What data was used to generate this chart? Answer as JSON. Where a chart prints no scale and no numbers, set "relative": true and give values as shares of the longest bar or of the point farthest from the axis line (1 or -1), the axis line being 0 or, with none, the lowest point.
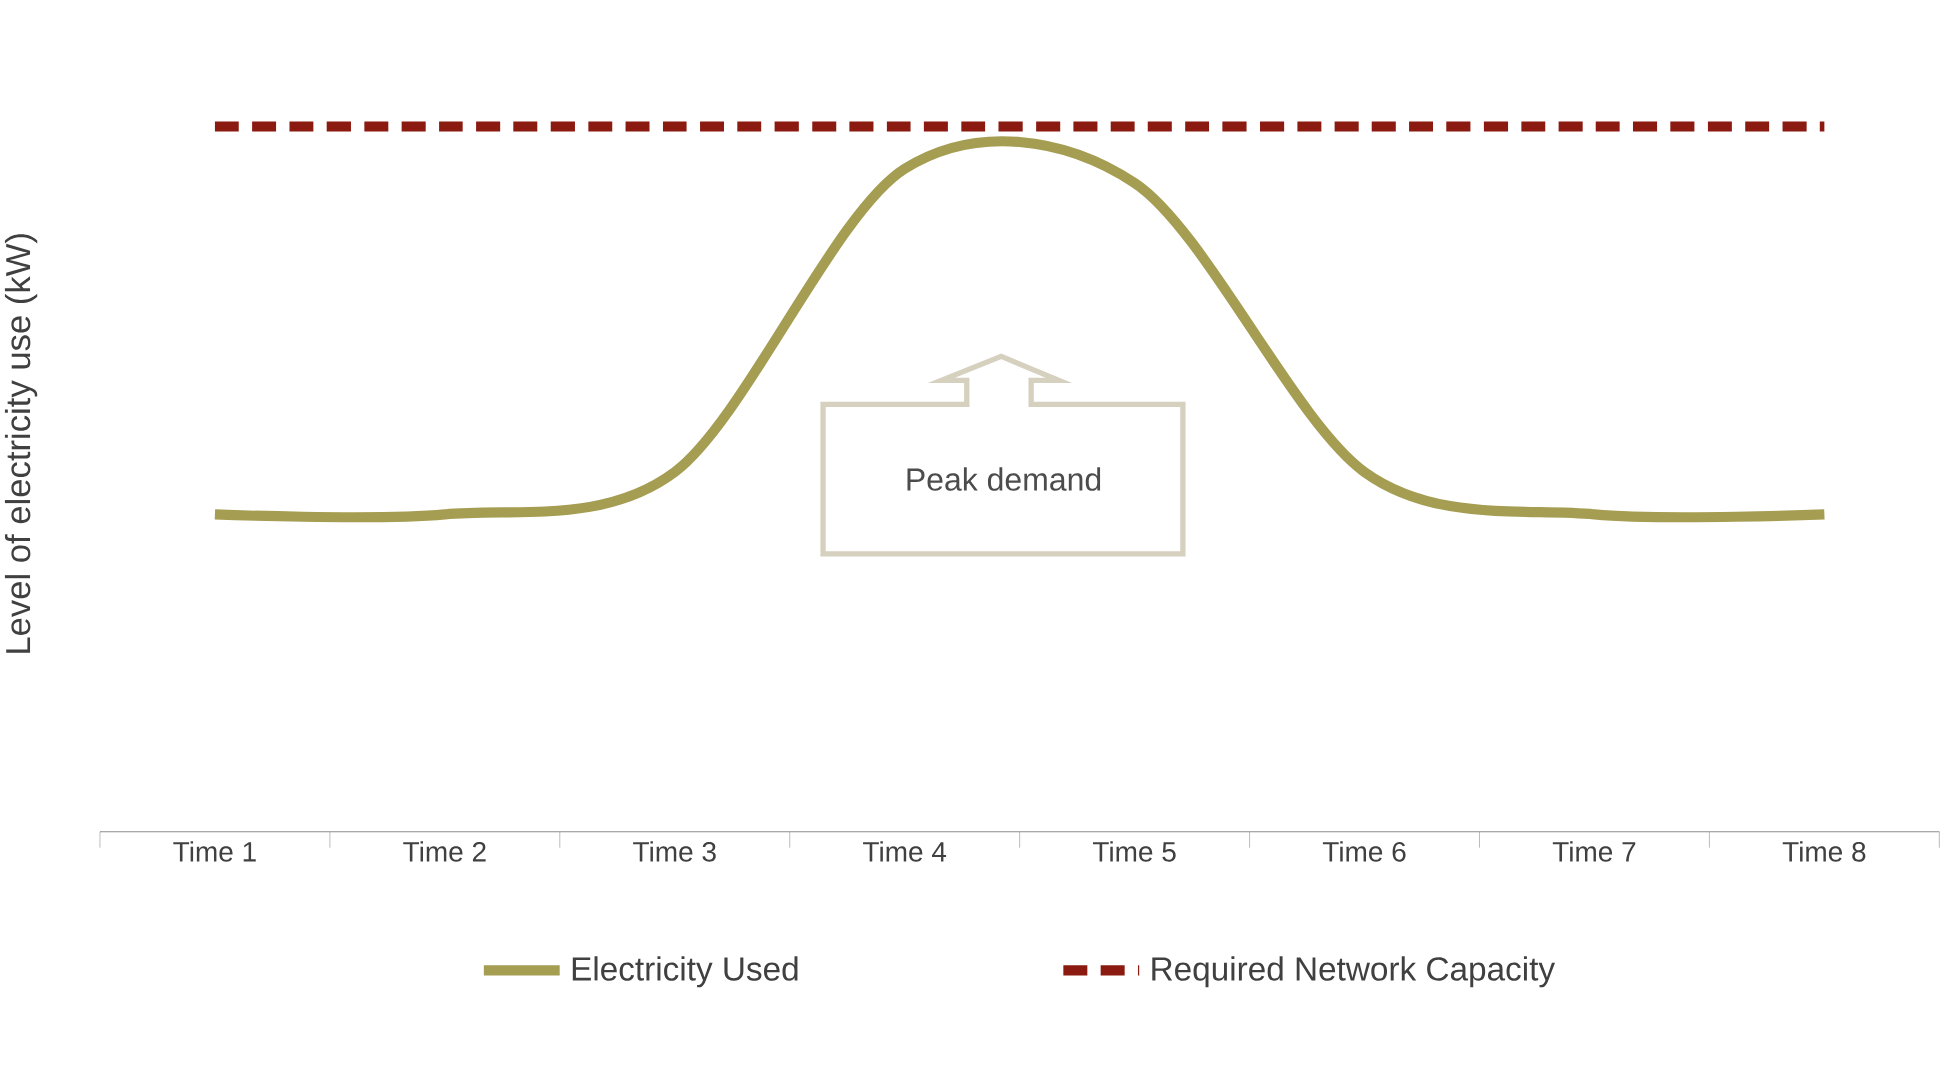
{
  "chart_data": {
    "type": "line",
    "relative": true,
    "ylabel": "Level of electricity use (kW)",
    "categories": [
      "Time 1",
      "Time 2",
      "Time 3",
      "Time 4",
      "Time 5",
      "Time 6",
      "Time 7",
      "Time 8"
    ],
    "series": [
      {
        "name": "Electricity Used",
        "color": "#a59d52",
        "line_style": "solid",
        "values": [
          0.45,
          0.45,
          0.51,
          0.94,
          0.92,
          0.51,
          0.45,
          0.45
        ]
      },
      {
        "name": "Required Network Capacity",
        "color": "#8b1a10",
        "line_style": "dashed",
        "values": [
          1,
          1,
          1,
          1,
          1,
          1,
          1,
          1
        ]
      }
    ],
    "annotations": [
      "Peak demand"
    ],
    "legend": "bottom"
  }
}
